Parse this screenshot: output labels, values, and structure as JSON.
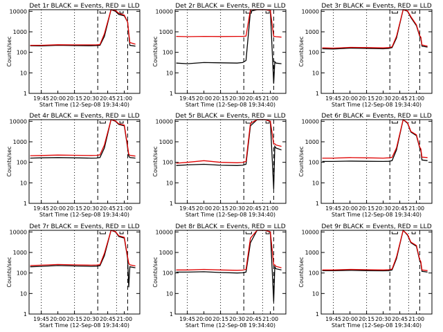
{
  "colors": {
    "black_series": "#000000",
    "red_series": "#e00000",
    "background": "#ffffff"
  },
  "chart_data": [
    {
      "type": "line",
      "title": "Det 1r BLACK = Events, RED = LLD",
      "ylabel": "Counts/sec",
      "xlabel": "Start Time (12-Sep-08 19:34:40)",
      "xticks": [
        "19:45",
        "20:00",
        "20:15",
        "20:30",
        "20:45",
        "21:00"
      ],
      "yticks": [
        "1",
        "10",
        "100",
        "1000",
        "10000"
      ],
      "yscale": "log",
      "ylim": [
        1,
        12000
      ],
      "x": [
        "19:35",
        "19:45",
        "20:00",
        "20:15",
        "20:30",
        "20:35",
        "20:38",
        "20:42",
        "20:48",
        "20:52",
        "20:55",
        "21:00",
        "21:03",
        "21:04",
        "21:05",
        "21:10"
      ],
      "series": [
        {
          "name": "BLACK",
          "values": [
            210,
            205,
            220,
            215,
            210,
            215,
            220,
            600,
            13000,
            10000,
            7000,
            6000,
            3000,
            800,
            220,
            200
          ]
        },
        {
          "name": "RED",
          "values": [
            220,
            220,
            235,
            230,
            230,
            232,
            240,
            800,
            13000,
            11000,
            8000,
            6500,
            3000,
            900,
            300,
            250
          ]
        }
      ]
    },
    {
      "type": "line",
      "title": "Det 2r BLACK = Events, RED = LLD",
      "ylabel": "Counts/sec",
      "xlabel": "Start Time (12-Sep-08 19:34:40)",
      "xticks": [
        "19:45",
        "20:00",
        "20:15",
        "20:30",
        "20:45",
        "21:00"
      ],
      "yticks": [
        "1",
        "10",
        "100",
        "1000",
        "10000"
      ],
      "yscale": "log",
      "ylim": [
        1,
        12000
      ],
      "x": [
        "19:35",
        "19:45",
        "20:00",
        "20:15",
        "20:30",
        "20:35",
        "20:38",
        "20:42",
        "20:48",
        "20:52",
        "20:55",
        "21:00",
        "21:03",
        "21:04",
        "21:05",
        "21:10"
      ],
      "series": [
        {
          "name": "BLACK",
          "values": [
            30,
            28,
            32,
            31,
            30,
            32,
            40,
            10000,
            13000,
            13000,
            12000,
            11000,
            3,
            35,
            30,
            28
          ]
        },
        {
          "name": "RED",
          "values": [
            600,
            580,
            600,
            590,
            600,
            600,
            620,
            12000,
            13000,
            13000,
            12000,
            11000,
            600,
            600,
            580,
            550
          ]
        }
      ]
    },
    {
      "type": "line",
      "title": "Det 3r BLACK = Events, RED = LLD",
      "ylabel": "Counts/sec",
      "xlabel": "Start Time (12-Sep-08 19:34:40)",
      "xticks": [
        "19:45",
        "20:00",
        "20:15",
        "20:30",
        "20:45",
        "21:00"
      ],
      "yticks": [
        "1",
        "10",
        "100",
        "1000",
        "10000"
      ],
      "yscale": "log",
      "ylim": [
        1,
        12000
      ],
      "x": [
        "19:35",
        "19:45",
        "20:00",
        "20:15",
        "20:30",
        "20:35",
        "20:38",
        "20:42",
        "20:48",
        "20:52",
        "20:55",
        "21:00",
        "21:03",
        "21:04",
        "21:05",
        "21:10"
      ],
      "series": [
        {
          "name": "BLACK",
          "values": [
            150,
            145,
            160,
            155,
            150,
            155,
            170,
            500,
            12000,
            10000,
            5000,
            2000,
            600,
            500,
            200,
            180
          ]
        },
        {
          "name": "RED",
          "values": [
            165,
            160,
            175,
            170,
            165,
            170,
            185,
            600,
            12500,
            10500,
            5500,
            2200,
            650,
            550,
            230,
            200
          ]
        }
      ]
    },
    {
      "type": "line",
      "title": "Det 4r BLACK = Events, RED = LLD",
      "ylabel": "Counts/sec",
      "xlabel": "Start Time (12-Sep-08 19:34:40)",
      "xticks": [
        "19:45",
        "20:00",
        "20:15",
        "20:30",
        "20:45",
        "21:00"
      ],
      "yticks": [
        "1",
        "10",
        "100",
        "1000",
        "10000"
      ],
      "yscale": "log",
      "ylim": [
        1,
        12000
      ],
      "x": [
        "19:35",
        "19:45",
        "20:00",
        "20:15",
        "20:30",
        "20:35",
        "20:38",
        "20:42",
        "20:48",
        "20:52",
        "20:55",
        "21:00",
        "21:03",
        "21:04",
        "21:05",
        "21:10"
      ],
      "series": [
        {
          "name": "BLACK",
          "values": [
            160,
            165,
            170,
            165,
            160,
            162,
            170,
            500,
            12000,
            10000,
            7000,
            6000,
            500,
            200,
            170,
            160
          ]
        },
        {
          "name": "RED",
          "values": [
            210,
            215,
            225,
            220,
            215,
            218,
            230,
            700,
            12500,
            10500,
            7500,
            6500,
            600,
            250,
            220,
            200
          ]
        }
      ]
    },
    {
      "type": "line",
      "title": "Det 5r BLACK = Events, RED = LLD",
      "ylabel": "Counts/sec",
      "xlabel": "Start Time (12-Sep-08 19:34:40)",
      "xticks": [
        "19:45",
        "20:00",
        "20:15",
        "20:30",
        "20:45",
        "21:00"
      ],
      "yticks": [
        "1",
        "10",
        "100",
        "1000",
        "10000"
      ],
      "yscale": "log",
      "ylim": [
        1,
        12000
      ],
      "x": [
        "19:35",
        "19:45",
        "20:00",
        "20:15",
        "20:30",
        "20:35",
        "20:38",
        "20:42",
        "20:48",
        "20:52",
        "20:55",
        "21:00",
        "21:03",
        "21:04",
        "21:05",
        "21:10"
      ],
      "series": [
        {
          "name": "BLACK",
          "values": [
            70,
            75,
            80,
            72,
            70,
            72,
            80,
            6000,
            13000,
            13000,
            12000,
            10000,
            5,
            600,
            500,
            400
          ]
        },
        {
          "name": "RED",
          "values": [
            90,
            100,
            120,
            100,
            95,
            98,
            110,
            8000,
            13000,
            13000,
            12000,
            10000,
            800,
            800,
            700,
            600
          ]
        }
      ]
    },
    {
      "type": "line",
      "title": "Det 6r BLACK = Events, RED = LLD",
      "ylabel": "Counts/sec",
      "xlabel": "Start Time (12-Sep-08 19:34:40)",
      "xticks": [
        "19:45",
        "20:00",
        "20:15",
        "20:30",
        "20:45",
        "21:00"
      ],
      "yticks": [
        "1",
        "10",
        "100",
        "1000",
        "10000"
      ],
      "yscale": "log",
      "ylim": [
        1,
        12000
      ],
      "x": [
        "19:35",
        "19:45",
        "20:00",
        "20:15",
        "20:30",
        "20:35",
        "20:38",
        "20:42",
        "20:48",
        "20:52",
        "20:55",
        "21:00",
        "21:03",
        "21:04",
        "21:05",
        "21:10"
      ],
      "series": [
        {
          "name": "BLACK",
          "values": [
            110,
            110,
            115,
            112,
            110,
            112,
            120,
            400,
            12000,
            8000,
            3000,
            2000,
            500,
            400,
            130,
            120
          ]
        },
        {
          "name": "RED",
          "values": [
            160,
            160,
            170,
            165,
            160,
            165,
            175,
            500,
            12500,
            8500,
            3200,
            2200,
            550,
            450,
            180,
            170
          ]
        }
      ]
    },
    {
      "type": "line",
      "title": "Det 7r BLACK = Events, RED = LLD",
      "ylabel": "Counts/sec",
      "xlabel": "Start Time (12-Sep-08 19:34:40)",
      "xticks": [
        "19:45",
        "20:00",
        "20:15",
        "20:30",
        "20:45",
        "21:00"
      ],
      "yticks": [
        "1",
        "10",
        "100",
        "1000",
        "10000"
      ],
      "yscale": "log",
      "ylim": [
        1,
        12000
      ],
      "x": [
        "19:35",
        "19:45",
        "20:00",
        "20:15",
        "20:30",
        "20:35",
        "20:38",
        "20:42",
        "20:48",
        "20:52",
        "20:55",
        "21:00",
        "21:03",
        "21:04",
        "21:05",
        "21:10"
      ],
      "series": [
        {
          "name": "BLACK",
          "values": [
            200,
            210,
            230,
            220,
            210,
            215,
            225,
            700,
            12000,
            10000,
            6000,
            5000,
            500,
            20,
            200,
            180
          ]
        },
        {
          "name": "RED",
          "values": [
            230,
            240,
            260,
            250,
            240,
            245,
            255,
            900,
            12500,
            10500,
            6500,
            5500,
            600,
            300,
            250,
            220
          ]
        }
      ]
    },
    {
      "type": "line",
      "title": "Det 8r BLACK = Events, RED = LLD",
      "ylabel": "Counts/sec",
      "xlabel": "Start Time (12-Sep-08 19:34:40)",
      "xticks": [
        "19:45",
        "20:00",
        "20:15",
        "20:30",
        "20:45",
        "21:00"
      ],
      "yticks": [
        "1",
        "10",
        "100",
        "1000",
        "10000"
      ],
      "yscale": "log",
      "ylim": [
        1,
        12000
      ],
      "x": [
        "19:35",
        "19:45",
        "20:00",
        "20:15",
        "20:30",
        "20:35",
        "20:38",
        "20:42",
        "20:48",
        "20:52",
        "20:55",
        "21:00",
        "21:03",
        "21:04",
        "21:05",
        "21:10"
      ],
      "series": [
        {
          "name": "BLACK",
          "values": [
            110,
            110,
            115,
            105,
            100,
            102,
            110,
            3000,
            13000,
            13000,
            12000,
            10000,
            4,
            200,
            160,
            140
          ]
        },
        {
          "name": "RED",
          "values": [
            140,
            140,
            150,
            140,
            135,
            138,
            150,
            5000,
            13000,
            13000,
            12000,
            10000,
            250,
            250,
            210,
            180
          ]
        }
      ]
    },
    {
      "type": "line",
      "title": "Det 9r BLACK = Events, RED = LLD",
      "ylabel": "Counts/sec",
      "xlabel": "Start Time (12-Sep-08 19:34:40)",
      "xticks": [
        "19:45",
        "20:00",
        "20:15",
        "20:30",
        "20:45",
        "21:00"
      ],
      "yticks": [
        "1",
        "10",
        "100",
        "1000",
        "10000"
      ],
      "yscale": "log",
      "ylim": [
        1,
        12000
      ],
      "x": [
        "19:35",
        "19:45",
        "20:00",
        "20:15",
        "20:30",
        "20:35",
        "20:38",
        "20:42",
        "20:48",
        "20:52",
        "20:55",
        "21:00",
        "21:03",
        "21:04",
        "21:05",
        "21:10"
      ],
      "series": [
        {
          "name": "BLACK",
          "values": [
            130,
            130,
            135,
            130,
            128,
            130,
            140,
            500,
            12000,
            7000,
            3000,
            2000,
            400,
            300,
            120,
            110
          ]
        },
        {
          "name": "RED",
          "values": [
            140,
            140,
            150,
            145,
            140,
            145,
            155,
            600,
            12500,
            7500,
            3200,
            2200,
            450,
            350,
            140,
            130
          ]
        }
      ]
    }
  ]
}
